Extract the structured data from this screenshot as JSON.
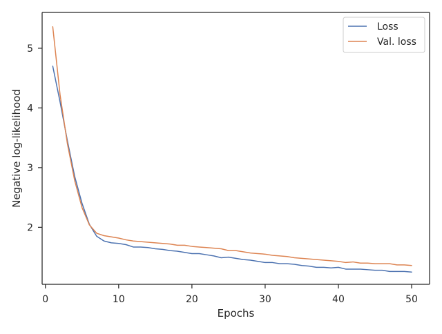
{
  "chart_data": {
    "type": "line",
    "title": "",
    "xlabel": "Epochs",
    "ylabel": "Negative log-likelihood",
    "xlim": [
      -0.45,
      52.45
    ],
    "ylim": [
      1.045,
      5.6
    ],
    "xticks": [
      0,
      10,
      20,
      30,
      40,
      50
    ],
    "yticks": [
      2,
      3,
      4,
      5
    ],
    "grid": false,
    "legend_position": "top-right",
    "x": [
      1,
      2,
      3,
      4,
      5,
      6,
      7,
      8,
      9,
      10,
      11,
      12,
      13,
      14,
      15,
      16,
      17,
      18,
      19,
      20,
      21,
      22,
      23,
      24,
      25,
      26,
      27,
      28,
      29,
      30,
      31,
      32,
      33,
      34,
      35,
      36,
      37,
      38,
      39,
      40,
      41,
      42,
      43,
      44,
      45,
      46,
      47,
      48,
      49,
      50
    ],
    "series": [
      {
        "name": "Loss",
        "color": "#4c72b0",
        "values": [
          4.7,
          4.1,
          3.45,
          2.85,
          2.4,
          2.05,
          1.85,
          1.77,
          1.74,
          1.73,
          1.71,
          1.67,
          1.67,
          1.66,
          1.64,
          1.63,
          1.61,
          1.6,
          1.58,
          1.56,
          1.56,
          1.54,
          1.52,
          1.49,
          1.5,
          1.48,
          1.46,
          1.45,
          1.43,
          1.41,
          1.41,
          1.39,
          1.39,
          1.38,
          1.36,
          1.35,
          1.33,
          1.33,
          1.32,
          1.33,
          1.3,
          1.3,
          1.3,
          1.29,
          1.28,
          1.28,
          1.26,
          1.26,
          1.26,
          1.25
        ]
      },
      {
        "name": "Val. loss",
        "color": "#dd8452",
        "values": [
          5.36,
          4.22,
          3.4,
          2.78,
          2.33,
          2.04,
          1.9,
          1.86,
          1.84,
          1.82,
          1.79,
          1.77,
          1.76,
          1.75,
          1.74,
          1.73,
          1.72,
          1.7,
          1.7,
          1.68,
          1.67,
          1.66,
          1.65,
          1.64,
          1.61,
          1.61,
          1.59,
          1.57,
          1.56,
          1.55,
          1.53,
          1.52,
          1.51,
          1.49,
          1.48,
          1.47,
          1.46,
          1.45,
          1.44,
          1.43,
          1.41,
          1.42,
          1.4,
          1.4,
          1.39,
          1.39,
          1.39,
          1.37,
          1.37,
          1.36
        ]
      }
    ]
  }
}
